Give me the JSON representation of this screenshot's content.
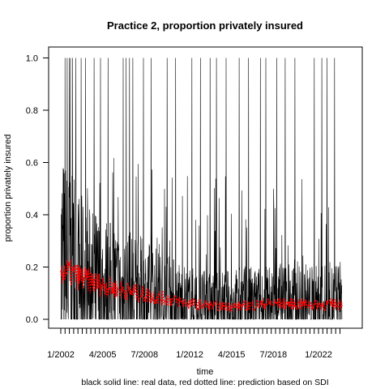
{
  "chart_data": {
    "type": "line",
    "title": "Practice 2, proportion privately insured",
    "xlabel": "time",
    "ylabel": "proportion privately insured",
    "caption": "black solid line: real data, red dotted line: prediction based on SDI",
    "x_tick_labels": [
      "1/2002",
      "4/2005",
      "7/2008",
      "1/2012",
      "4/2015",
      "7/2018",
      "1/2022"
    ],
    "x_tick_months": [
      0,
      39,
      78,
      120,
      159,
      198,
      240
    ],
    "x_minor_tick_count": 66,
    "x_minor_tick_step_months": 4,
    "xlim_months": [
      -10,
      270
    ],
    "y_ticks": [
      "0.0",
      "0.2",
      "0.4",
      "0.6",
      "0.8",
      "1.0"
    ],
    "y_tick_values": [
      0,
      0.2,
      0.4,
      0.6,
      0.8,
      1.0
    ],
    "ylim": [
      -0.02,
      1.02
    ],
    "grid": false,
    "legend": "none",
    "series": [
      {
        "color": "#000000",
        "style": "solid",
        "description_points": [
          {
            "x": 0,
            "y": 0.22
          },
          {
            "x": 12,
            "y": 0.17
          },
          {
            "x": 24,
            "y": 0.14
          },
          {
            "x": 48,
            "y": 0.12
          },
          {
            "x": 72,
            "y": 0.1
          },
          {
            "x": 96,
            "y": 0.08
          },
          {
            "x": 120,
            "y": 0.06
          },
          {
            "x": 144,
            "y": 0.05
          },
          {
            "x": 168,
            "y": 0.06
          },
          {
            "x": 192,
            "y": 0.06
          },
          {
            "x": 216,
            "y": 0.07
          },
          {
            "x": 240,
            "y": 0.06
          },
          {
            "x": 262,
            "y": 0.07
          }
        ]
      },
      {
        "color": "#ff0000",
        "style": "dotted",
        "points": [
          {
            "x": 0,
            "y": 0.19
          },
          {
            "x": 12,
            "y": 0.17
          },
          {
            "x": 24,
            "y": 0.15
          },
          {
            "x": 48,
            "y": 0.12
          },
          {
            "x": 72,
            "y": 0.1
          },
          {
            "x": 96,
            "y": 0.08
          },
          {
            "x": 120,
            "y": 0.06
          },
          {
            "x": 144,
            "y": 0.05
          },
          {
            "x": 168,
            "y": 0.05
          },
          {
            "x": 192,
            "y": 0.06
          },
          {
            "x": 216,
            "y": 0.06
          },
          {
            "x": 240,
            "y": 0.055
          },
          {
            "x": 262,
            "y": 0.06
          }
        ]
      }
    ],
    "spikes_to_one_months": [
      4,
      6,
      8,
      9,
      11,
      14,
      19,
      23,
      31,
      37,
      44,
      58,
      61,
      64,
      67,
      77,
      84,
      99,
      107,
      122,
      130,
      139,
      145,
      154,
      166,
      175,
      186,
      191,
      201,
      209,
      218,
      236,
      243,
      248,
      255
    ]
  },
  "colors": {
    "data": "#000000",
    "prediction": "#ff0000",
    "frame": "#000000",
    "background": "#ffffff"
  }
}
